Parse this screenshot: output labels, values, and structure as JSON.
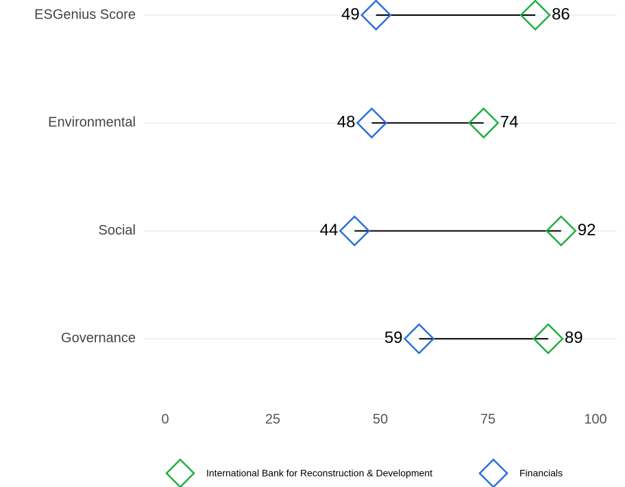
{
  "chart_data": {
    "type": "dumbbell",
    "categories": [
      "ESGenius Score",
      "Environmental",
      "Social",
      "Governance"
    ],
    "series": [
      {
        "name": "International Bank for Reconstruction & Development",
        "color": "#1db03f",
        "values": [
          86,
          74,
          92,
          89
        ]
      },
      {
        "name": "Financials",
        "color": "#2a6fdb",
        "values": [
          49,
          48,
          44,
          59
        ]
      }
    ],
    "xlim": [
      0,
      100
    ],
    "xticks": [
      0,
      25,
      50,
      75,
      100
    ],
    "grid": true,
    "legend": "bottom"
  }
}
